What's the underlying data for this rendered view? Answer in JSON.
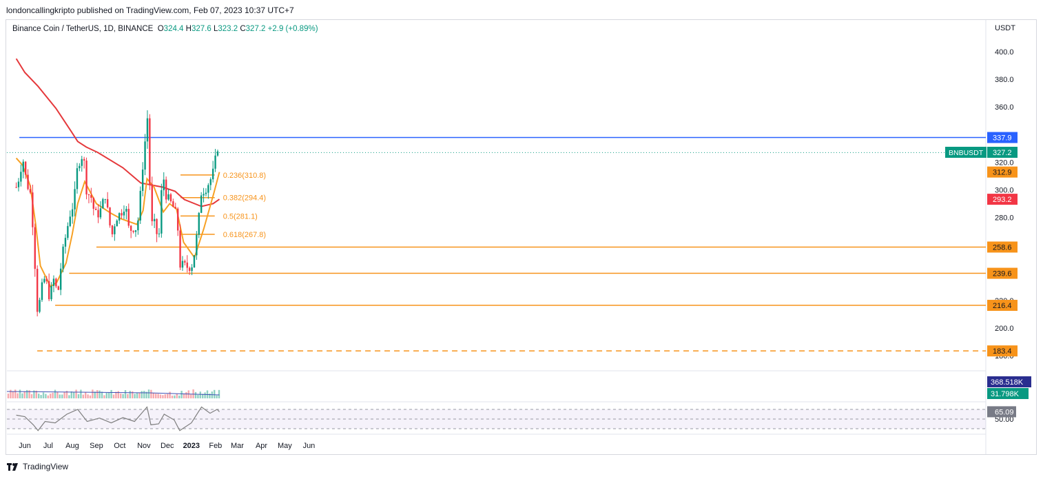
{
  "header": {
    "published_by": "londoncallingkripto published on TradingView.com, Feb 07, 2023 10:37 UTC+7"
  },
  "legend": {
    "symbol": "Binance Coin / TetherUS, 1D, BINANCE",
    "open_label": "O",
    "open": "324.4",
    "high_label": "H",
    "high": "327.6",
    "low_label": "L",
    "low": "323.2",
    "close_label": "C",
    "close": "327.2",
    "change": "+2.9 (+0.89%)"
  },
  "footer": {
    "brand": "TradingView"
  },
  "colors": {
    "up": "#089981",
    "down": "#f23645",
    "ma_long": "#e5383b",
    "ma_short": "#f7a023",
    "resistance": "#2962ff",
    "support": "#f7931a",
    "volume_ma": "#3f51b5",
    "rsi": "#7e7e7e"
  },
  "chart_data": {
    "type": "candlestick",
    "title": "",
    "currency_label": "USDT",
    "x_tick_labels": [
      "Jun",
      "Jul",
      "Aug",
      "Sep",
      "Oct",
      "Nov",
      "Dec",
      "2023",
      "Feb",
      "Mar",
      "Apr",
      "May",
      "Jun"
    ],
    "y_tick_labels": [
      "180.0",
      "200.0",
      "220.0",
      "280.0",
      "300.0",
      "320.0",
      "360.0",
      "380.0",
      "400.0"
    ],
    "ylim": [
      177,
      415
    ],
    "price_series": [
      {
        "date": "2022-05-21",
        "close": 302
      },
      {
        "date": "2022-05-26",
        "close": 312
      },
      {
        "date": "2022-05-29",
        "close": 325
      },
      {
        "date": "2022-06-03",
        "close": 306
      },
      {
        "date": "2022-06-08",
        "close": 298
      },
      {
        "date": "2022-06-12",
        "close": 270
      },
      {
        "date": "2022-06-15",
        "close": 235
      },
      {
        "date": "2022-06-18",
        "close": 205
      },
      {
        "date": "2022-06-21",
        "close": 225
      },
      {
        "date": "2022-06-27",
        "close": 237
      },
      {
        "date": "2022-07-03",
        "close": 222
      },
      {
        "date": "2022-07-09",
        "close": 237
      },
      {
        "date": "2022-07-13",
        "close": 222
      },
      {
        "date": "2022-07-18",
        "close": 248
      },
      {
        "date": "2022-07-24",
        "close": 268
      },
      {
        "date": "2022-07-30",
        "close": 285
      },
      {
        "date": "2022-08-03",
        "close": 290
      },
      {
        "date": "2022-08-08",
        "close": 318
      },
      {
        "date": "2022-08-13",
        "close": 325
      },
      {
        "date": "2022-08-17",
        "close": 318
      },
      {
        "date": "2022-08-20",
        "close": 295
      },
      {
        "date": "2022-08-24",
        "close": 298
      },
      {
        "date": "2022-08-30",
        "close": 282
      },
      {
        "date": "2022-09-04",
        "close": 283
      },
      {
        "date": "2022-09-08",
        "close": 287
      },
      {
        "date": "2022-09-12",
        "close": 298
      },
      {
        "date": "2022-09-17",
        "close": 278
      },
      {
        "date": "2022-09-21",
        "close": 267
      },
      {
        "date": "2022-09-26",
        "close": 280
      },
      {
        "date": "2022-10-02",
        "close": 283
      },
      {
        "date": "2022-10-08",
        "close": 290
      },
      {
        "date": "2022-10-13",
        "close": 270
      },
      {
        "date": "2022-10-18",
        "close": 273
      },
      {
        "date": "2022-10-23",
        "close": 272
      },
      {
        "date": "2022-10-26",
        "close": 285
      },
      {
        "date": "2022-10-30",
        "close": 315
      },
      {
        "date": "2022-11-03",
        "close": 338
      },
      {
        "date": "2022-11-06",
        "close": 355
      },
      {
        "date": "2022-11-08",
        "close": 330
      },
      {
        "date": "2022-11-09",
        "close": 280
      },
      {
        "date": "2022-11-11",
        "close": 275
      },
      {
        "date": "2022-11-15",
        "close": 275
      },
      {
        "date": "2022-11-20",
        "close": 262
      },
      {
        "date": "2022-11-23",
        "close": 295
      },
      {
        "date": "2022-11-26",
        "close": 310
      },
      {
        "date": "2022-11-30",
        "close": 295
      },
      {
        "date": "2022-12-06",
        "close": 290
      },
      {
        "date": "2022-12-11",
        "close": 285
      },
      {
        "date": "2022-12-15",
        "close": 270
      },
      {
        "date": "2022-12-17",
        "close": 246
      },
      {
        "date": "2022-12-22",
        "close": 245
      },
      {
        "date": "2022-12-28",
        "close": 244
      },
      {
        "date": "2023-01-02",
        "close": 246
      },
      {
        "date": "2023-01-06",
        "close": 258
      },
      {
        "date": "2023-01-10",
        "close": 276
      },
      {
        "date": "2023-01-14",
        "close": 300
      },
      {
        "date": "2023-01-18",
        "close": 300
      },
      {
        "date": "2023-01-23",
        "close": 305
      },
      {
        "date": "2023-01-28",
        "close": 310
      },
      {
        "date": "2023-02-01",
        "close": 322
      },
      {
        "date": "2023-02-04",
        "close": 332
      },
      {
        "date": "2023-02-06",
        "close": 327
      }
    ],
    "ma_long_series": [
      {
        "date": "2022-05-21",
        "value": 395
      },
      {
        "date": "2022-06-01",
        "value": 385
      },
      {
        "date": "2022-06-18",
        "value": 375
      },
      {
        "date": "2022-07-11",
        "value": 359
      },
      {
        "date": "2022-07-31",
        "value": 342
      },
      {
        "date": "2022-08-08",
        "value": 335
      },
      {
        "date": "2022-08-19",
        "value": 331
      },
      {
        "date": "2022-09-03",
        "value": 327
      },
      {
        "date": "2022-10-05",
        "value": 316
      },
      {
        "date": "2022-10-28",
        "value": 305
      },
      {
        "date": "2022-11-25",
        "value": 302
      },
      {
        "date": "2022-12-11",
        "value": 299
      },
      {
        "date": "2022-12-23",
        "value": 293
      },
      {
        "date": "2023-01-14",
        "value": 288
      },
      {
        "date": "2023-01-29",
        "value": 290
      },
      {
        "date": "2023-02-06",
        "value": 293.2
      }
    ],
    "ma_short_series": [
      {
        "date": "2022-05-21",
        "value": 323
      },
      {
        "date": "2022-05-29",
        "value": 318
      },
      {
        "date": "2022-06-08",
        "value": 303
      },
      {
        "date": "2022-06-15",
        "value": 275
      },
      {
        "date": "2022-06-21",
        "value": 245
      },
      {
        "date": "2022-07-04",
        "value": 230
      },
      {
        "date": "2022-07-12",
        "value": 233
      },
      {
        "date": "2022-07-24",
        "value": 247
      },
      {
        "date": "2022-08-01",
        "value": 268
      },
      {
        "date": "2022-08-08",
        "value": 290
      },
      {
        "date": "2022-08-17",
        "value": 306
      },
      {
        "date": "2022-09-01",
        "value": 290
      },
      {
        "date": "2022-09-20",
        "value": 283
      },
      {
        "date": "2022-10-03",
        "value": 279
      },
      {
        "date": "2022-10-23",
        "value": 275
      },
      {
        "date": "2022-10-31",
        "value": 285
      },
      {
        "date": "2022-11-05",
        "value": 308
      },
      {
        "date": "2022-11-14",
        "value": 302
      },
      {
        "date": "2022-11-26",
        "value": 284
      },
      {
        "date": "2022-12-04",
        "value": 290
      },
      {
        "date": "2022-12-13",
        "value": 286
      },
      {
        "date": "2022-12-22",
        "value": 262
      },
      {
        "date": "2023-01-05",
        "value": 251
      },
      {
        "date": "2023-01-17",
        "value": 272
      },
      {
        "date": "2023-01-30",
        "value": 298
      },
      {
        "date": "2023-02-06",
        "value": 312.9
      }
    ],
    "horizontal_levels": [
      {
        "label": "337.9",
        "value": 337.9,
        "start": "2022-05-25",
        "style": "solid",
        "color": "#2962ff"
      },
      {
        "label": "258.6",
        "value": 258.6,
        "start": "2022-09-01",
        "style": "solid",
        "color": "#f7931a"
      },
      {
        "label": "239.6",
        "value": 239.6,
        "start": "2022-07-28",
        "style": "solid",
        "color": "#f7931a"
      },
      {
        "label": "216.4",
        "value": 216.4,
        "start": "2022-07-10",
        "style": "solid",
        "color": "#f7931a"
      },
      {
        "label": "183.4",
        "value": 183.4,
        "start": "2022-06-17",
        "style": "dashed",
        "color": "#f7931a"
      }
    ],
    "fibonacci": {
      "start": "2022-12-18",
      "end": "2023-01-31",
      "levels": [
        {
          "label": "0.236(310.8)",
          "value": 310.8
        },
        {
          "label": "0.382(294.4)",
          "value": 294.4
        },
        {
          "label": "0.5(281.1)",
          "value": 281.1
        },
        {
          "label": "0.618(267.8)",
          "value": 267.8
        }
      ]
    },
    "price_labels": [
      {
        "text": "337.9",
        "value": 337.9,
        "color": "#2962ff"
      },
      {
        "text": "327.2",
        "value": 327.2,
        "color": "#089981",
        "ticker": "BNBUSDT"
      },
      {
        "text": "312.9",
        "value": 312.9,
        "color": "#f7931a"
      },
      {
        "text": "293.2",
        "value": 293.2,
        "color": "#f23645"
      },
      {
        "text": "258.6",
        "value": 258.6,
        "color": "#f7931a"
      },
      {
        "text": "239.6",
        "value": 239.6,
        "color": "#f7931a"
      },
      {
        "text": "216.4",
        "value": 216.4,
        "color": "#f7931a"
      },
      {
        "text": "183.4",
        "value": 183.4,
        "color": "#f7931a"
      }
    ],
    "volume": {
      "ma_label": "368.518K",
      "last_label": "31.798K"
    },
    "rsi": {
      "value_label": "65.09",
      "tick_label": "50.00",
      "series": [
        {
          "date": "2022-05-21",
          "value": 58
        },
        {
          "date": "2022-06-01",
          "value": 55
        },
        {
          "date": "2022-06-12",
          "value": 38
        },
        {
          "date": "2022-06-18",
          "value": 26
        },
        {
          "date": "2022-06-27",
          "value": 45
        },
        {
          "date": "2022-07-10",
          "value": 42
        },
        {
          "date": "2022-07-25",
          "value": 60
        },
        {
          "date": "2022-08-08",
          "value": 70
        },
        {
          "date": "2022-08-20",
          "value": 45
        },
        {
          "date": "2022-09-05",
          "value": 52
        },
        {
          "date": "2022-09-20",
          "value": 42
        },
        {
          "date": "2022-10-05",
          "value": 53
        },
        {
          "date": "2022-10-20",
          "value": 45
        },
        {
          "date": "2022-11-05",
          "value": 75
        },
        {
          "date": "2022-11-10",
          "value": 38
        },
        {
          "date": "2022-11-20",
          "value": 40
        },
        {
          "date": "2022-11-27",
          "value": 60
        },
        {
          "date": "2022-12-10",
          "value": 48
        },
        {
          "date": "2022-12-17",
          "value": 26
        },
        {
          "date": "2023-01-01",
          "value": 42
        },
        {
          "date": "2023-01-14",
          "value": 75
        },
        {
          "date": "2023-01-25",
          "value": 62
        },
        {
          "date": "2023-02-03",
          "value": 70
        },
        {
          "date": "2023-02-06",
          "value": 65.09
        }
      ]
    }
  }
}
